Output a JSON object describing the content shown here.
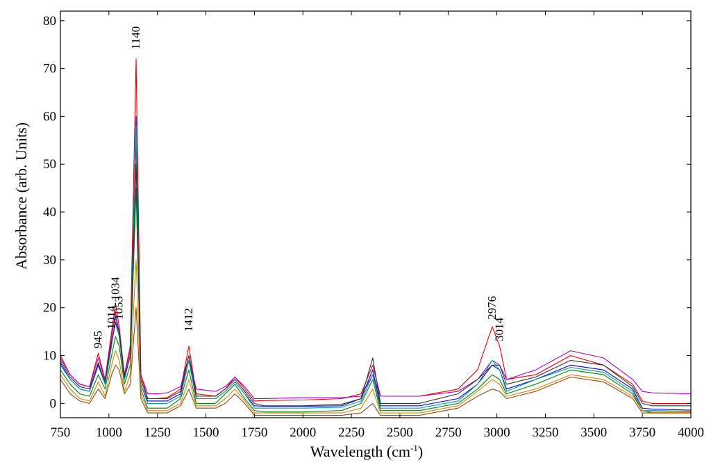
{
  "chart_data": {
    "type": "line",
    "xlabel": "Wavelength (cm",
    "xlabel_sup": "-1",
    "xlabel_end": ")",
    "ylabel": "Absorbance (arb. Units)",
    "xlim": [
      750,
      4000
    ],
    "ylim": [
      -3,
      82
    ],
    "x_ticks": [
      750,
      1000,
      1250,
      1500,
      1750,
      2000,
      2250,
      2500,
      2750,
      3000,
      3250,
      3500,
      3750,
      4000
    ],
    "y_ticks": [
      0,
      10,
      20,
      30,
      40,
      50,
      60,
      70,
      80
    ],
    "grid": false,
    "legend": "none",
    "annotations": [
      {
        "text": "945",
        "x": 945,
        "y": 11.5
      },
      {
        "text": "1014",
        "x": 1014,
        "y": 15.5
      },
      {
        "text": "1034",
        "x": 1034,
        "y": 21.5
      },
      {
        "text": "1053",
        "x": 1053,
        "y": 17.5
      },
      {
        "text": "1140",
        "x": 1140,
        "y": 74
      },
      {
        "text": "1412",
        "x": 1412,
        "y": 15
      },
      {
        "text": "2976",
        "x": 2976,
        "y": 17.5
      },
      {
        "text": "3014",
        "x": 3014,
        "y": 13
      }
    ],
    "x": [
      750,
      800,
      850,
      900,
      945,
      980,
      1014,
      1034,
      1053,
      1080,
      1110,
      1140,
      1165,
      1200,
      1250,
      1300,
      1370,
      1412,
      1450,
      1550,
      1600,
      1650,
      1700,
      1750,
      1800,
      2000,
      2200,
      2300,
      2360,
      2400,
      2600,
      2800,
      2900,
      2976,
      3014,
      3050,
      3200,
      3380,
      3550,
      3700,
      3750,
      3800,
      4000
    ],
    "series": [
      {
        "color": "#e00000",
        "values": [
          10,
          6,
          4,
          3.5,
          10.5,
          5,
          15,
          21,
          16,
          6,
          12,
          72,
          6,
          1,
          1,
          1.2,
          3,
          12,
          2,
          1.5,
          3,
          5.5,
          3,
          0.5,
          0.6,
          0.7,
          1,
          2,
          8,
          1.5,
          1.5,
          3,
          7,
          16,
          12,
          5,
          6,
          10,
          8,
          4,
          0.5,
          0,
          0
        ]
      },
      {
        "color": "#b000c0",
        "values": [
          9.5,
          6,
          4,
          3.5,
          9.5,
          5,
          14,
          19,
          15,
          6,
          11,
          55,
          6,
          2,
          2,
          2.2,
          3.5,
          10,
          3,
          2.5,
          3.5,
          5.5,
          3.5,
          1,
          1,
          1.2,
          1.2,
          1.5,
          6,
          1.5,
          1.5,
          2.5,
          5,
          9,
          8,
          5,
          7,
          11,
          9.5,
          5,
          2.5,
          2.2,
          2
        ]
      },
      {
        "color": "#0000e0",
        "values": [
          8.5,
          5,
          3,
          2.5,
          8,
          4,
          12.5,
          17,
          14,
          5,
          10,
          60,
          4,
          0.5,
          0.5,
          0.5,
          2,
          9,
          1,
          1,
          2.5,
          4.5,
          2,
          -0.5,
          -0.6,
          -0.6,
          -0.5,
          1,
          7,
          -0.5,
          -0.5,
          1,
          4,
          8,
          7,
          3,
          5,
          8,
          7,
          3,
          -1,
          -1.2,
          -1.4
        ]
      },
      {
        "color": "#00a0a0",
        "values": [
          8,
          5,
          3,
          2.5,
          8.5,
          4,
          12,
          18,
          14,
          5,
          10,
          58,
          4,
          0,
          0,
          0,
          1.5,
          9,
          1,
          1,
          2.5,
          4.5,
          2,
          -1,
          -1,
          -1,
          -0.8,
          0.5,
          6,
          -1,
          -1,
          0.5,
          4,
          9,
          7,
          2.5,
          5,
          7.5,
          6.5,
          2.5,
          -1.5,
          -1.5,
          -1.6
        ]
      },
      {
        "color": "#008000",
        "values": [
          7,
          4,
          2,
          1.5,
          6,
          3,
          10,
          14,
          12,
          4,
          8,
          45,
          3,
          -1,
          -1,
          -1,
          1,
          7,
          0,
          0,
          2,
          4,
          1,
          -1.5,
          -1.8,
          -1.8,
          -1.5,
          0,
          5,
          -1.5,
          -1.5,
          0,
          3,
          6,
          5,
          2,
          4,
          7,
          6,
          2,
          -1.5,
          -2,
          -2
        ]
      },
      {
        "color": "#303030",
        "values": [
          9,
          5.5,
          3.5,
          3,
          8.5,
          4.5,
          13,
          17,
          15,
          5.5,
          10,
          50,
          5,
          1,
          1,
          1,
          2.5,
          10,
          1.5,
          1.5,
          3,
          5,
          2.5,
          0,
          -0.5,
          -0.5,
          -0.2,
          1,
          9.5,
          0,
          0,
          2,
          5,
          8,
          8,
          4,
          5.5,
          9,
          8,
          3.5,
          0,
          -0.5,
          -0.5
        ]
      },
      {
        "color": "#e08000",
        "values": [
          6,
          3,
          1,
          0.5,
          4.5,
          1.5,
          8,
          11,
          9,
          2.5,
          6,
          30,
          2,
          -1.5,
          -1.5,
          -1.5,
          0,
          5,
          -0.5,
          -0.5,
          1,
          3,
          0.5,
          -2,
          -2,
          -2,
          -2,
          -1,
          3,
          -2,
          -2,
          -0.5,
          2.5,
          5,
          4,
          1.5,
          3,
          6,
          5,
          1.5,
          -1.5,
          -1.8,
          -1.8
        ]
      },
      {
        "color": "#8a4a10",
        "values": [
          5,
          2,
          0.5,
          0,
          3,
          1,
          6,
          8,
          7,
          2,
          4,
          20,
          1,
          -2,
          -2,
          -2,
          -0.5,
          3,
          -1,
          -1,
          0,
          2,
          0,
          -2.5,
          -2.5,
          -2.5,
          -2.5,
          -2,
          0,
          -2.5,
          -2.5,
          -1,
          1.5,
          3,
          2.5,
          1,
          2.5,
          5.5,
          4.5,
          1,
          -2,
          -2,
          -2
        ]
      }
    ]
  }
}
